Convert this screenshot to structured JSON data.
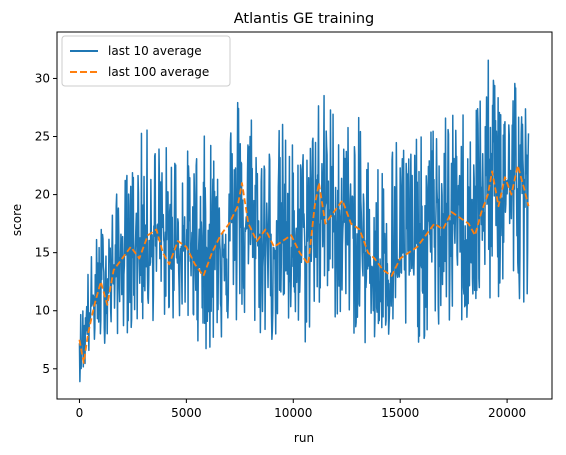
{
  "chart_data": {
    "type": "line",
    "title": "Atlantis GE training",
    "xlabel": "run",
    "ylabel": "score",
    "xlim": [
      -1050,
      22100
    ],
    "ylim": [
      2.4,
      34.0
    ],
    "xticks": [
      0,
      5000,
      10000,
      15000,
      20000
    ],
    "yticks": [
      5,
      10,
      15,
      20,
      25,
      30
    ],
    "grid": false,
    "legend_position": "top-left",
    "series": [
      {
        "name": "last 10 average",
        "color": "#1f77b4",
        "style": "solid",
        "x": [
          0,
          200,
          400,
          700,
          1000,
          1500,
          2000,
          2500,
          3000,
          3500,
          4000,
          4500,
          5000,
          5500,
          6000,
          6500,
          7000,
          7500,
          8000,
          8500,
          9000,
          9500,
          10000,
          10500,
          11000,
          11500,
          12000,
          12500,
          13000,
          13500,
          14000,
          14500,
          15000,
          15500,
          16000,
          16500,
          17000,
          17500,
          18000,
          18500,
          19000,
          19500,
          20000,
          20500,
          21000
        ],
        "values": [
          7.8,
          7.5,
          9.5,
          11.0,
          12.0,
          13.5,
          14.5,
          15.5,
          16.2,
          16.5,
          16.0,
          15.5,
          15.5,
          15.2,
          15.5,
          16.0,
          16.8,
          17.5,
          16.8,
          16.0,
          15.5,
          15.8,
          15.2,
          15.0,
          18.5,
          19.0,
          18.0,
          17.5,
          16.0,
          14.0,
          13.5,
          14.0,
          14.5,
          15.0,
          16.5,
          17.0,
          18.0,
          17.5,
          17.0,
          18.0,
          20.5,
          20.0,
          21.0,
          20.5,
          19.0
        ],
        "min_values": [
          3.8,
          4.5,
          5.5,
          6.5,
          7.0,
          7.5,
          8.0,
          8.0,
          8.5,
          9.0,
          9.0,
          9.0,
          8.5,
          7.5,
          6.0,
          7.0,
          8.0,
          8.5,
          8.0,
          7.5,
          7.0,
          7.5,
          7.5,
          6.5,
          9.0,
          9.5,
          9.0,
          8.5,
          7.5,
          6.5,
          6.5,
          7.0,
          7.5,
          7.5,
          7.0,
          7.5,
          8.0,
          8.5,
          8.5,
          9.0,
          10.0,
          10.5,
          11.0,
          11.0,
          10.5
        ],
        "max_values": [
          9.5,
          11.5,
          14.0,
          16.0,
          17.5,
          19.0,
          21.5,
          23.0,
          26.0,
          25.5,
          24.5,
          25.0,
          24.0,
          24.5,
          25.5,
          27.0,
          27.5,
          30.0,
          28.5,
          26.0,
          25.0,
          26.5,
          25.0,
          24.5,
          30.5,
          29.0,
          28.0,
          26.5,
          27.0,
          24.5,
          23.5,
          25.0,
          26.5,
          25.5,
          25.0,
          26.0,
          27.5,
          27.0,
          28.0,
          29.0,
          31.5,
          32.0,
          32.5,
          31.5,
          27.0
        ]
      },
      {
        "name": "last 100 average",
        "color": "#ff7f0e",
        "style": "dashed",
        "x": [
          0,
          200,
          400,
          700,
          1000,
          1300,
          1600,
          2000,
          2400,
          2800,
          3200,
          3600,
          3900,
          4200,
          4600,
          5000,
          5400,
          5800,
          6200,
          6600,
          7000,
          7400,
          7600,
          7900,
          8300,
          8700,
          9100,
          9500,
          9900,
          10300,
          10700,
          11000,
          11200,
          11500,
          11900,
          12300,
          12700,
          13100,
          13500,
          13800,
          14200,
          14600,
          15000,
          15400,
          15800,
          16200,
          16600,
          17000,
          17400,
          17800,
          18200,
          18500,
          18800,
          19100,
          19300,
          19600,
          19900,
          20200,
          20500,
          20800,
          21000
        ],
        "values": [
          7.5,
          5.5,
          8.0,
          10.5,
          12.5,
          10.5,
          13.5,
          14.5,
          15.5,
          14.5,
          16.5,
          17.0,
          15.0,
          14.0,
          16.0,
          15.5,
          14.0,
          13.0,
          15.0,
          16.5,
          17.5,
          19.0,
          21.0,
          17.5,
          16.0,
          17.0,
          15.5,
          16.0,
          16.5,
          15.0,
          14.0,
          19.0,
          21.0,
          17.5,
          18.5,
          19.5,
          17.5,
          17.0,
          15.0,
          14.5,
          13.5,
          13.0,
          14.5,
          15.0,
          15.5,
          16.5,
          17.5,
          17.0,
          18.5,
          18.0,
          17.5,
          16.5,
          18.5,
          20.0,
          22.0,
          19.0,
          21.5,
          20.0,
          22.5,
          20.5,
          19.0
        ]
      }
    ]
  }
}
